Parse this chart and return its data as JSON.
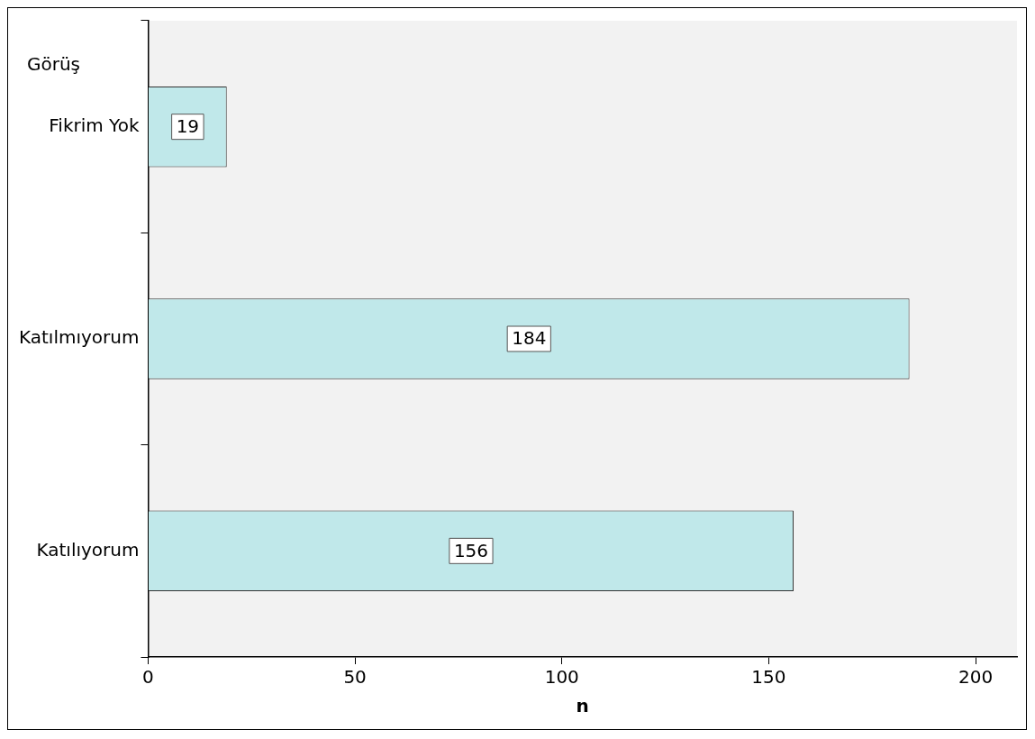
{
  "chart_data": {
    "type": "bar",
    "orientation": "horizontal",
    "ylabel": "Görüş",
    "xlabel": "n",
    "categories": [
      "Fikrim Yok",
      "Katılmıyorum",
      "Katılıyorum"
    ],
    "values": [
      19,
      184,
      156
    ],
    "color": "#c0e8ea",
    "xlim": [
      0,
      210
    ],
    "xticks": [
      0,
      50,
      100,
      150,
      200
    ],
    "grid": false,
    "legend": false,
    "data_labels": true
  }
}
